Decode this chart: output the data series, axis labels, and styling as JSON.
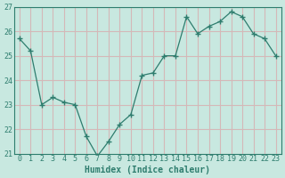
{
  "x": [
    0,
    1,
    2,
    3,
    4,
    5,
    6,
    7,
    8,
    9,
    10,
    11,
    12,
    13,
    14,
    15,
    16,
    17,
    18,
    19,
    20,
    21,
    22,
    23
  ],
  "y": [
    25.7,
    25.2,
    23.0,
    23.3,
    23.1,
    23.0,
    21.7,
    20.9,
    21.5,
    22.2,
    22.6,
    24.2,
    24.3,
    25.0,
    25.0,
    26.6,
    25.9,
    26.2,
    26.4,
    26.8,
    26.6,
    25.9,
    25.7,
    25.0
  ],
  "line_color": "#2e7d6e",
  "marker": "+",
  "marker_size": 4,
  "bg_color": "#c8e8e0",
  "grid_color": "#d4b8b8",
  "axis_color": "#2e7d6e",
  "tick_color": "#2e7d6e",
  "xlabel": "Humidex (Indice chaleur)",
  "ylim": [
    21,
    27
  ],
  "xlim": [
    -0.5,
    23.5
  ],
  "yticks": [
    21,
    22,
    23,
    24,
    25,
    26,
    27
  ],
  "xticks": [
    0,
    1,
    2,
    3,
    4,
    5,
    6,
    7,
    8,
    9,
    10,
    11,
    12,
    13,
    14,
    15,
    16,
    17,
    18,
    19,
    20,
    21,
    22,
    23
  ],
  "font_size_label": 7,
  "font_size_tick": 6
}
